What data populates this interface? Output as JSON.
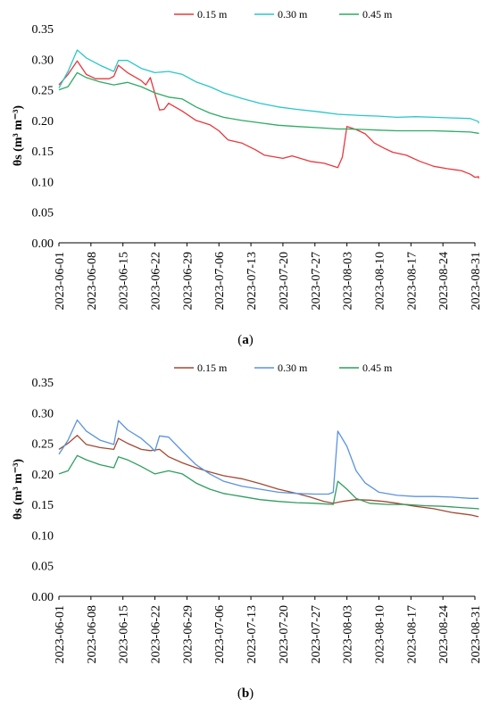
{
  "chart_data": [
    {
      "panel_label": "a",
      "type": "line",
      "ylabel": "θs (m³ m⁻³)",
      "ylim": [
        0,
        0.35
      ],
      "yticks": [
        "0.00",
        "0.05",
        "0.10",
        "0.15",
        "0.20",
        "0.25",
        "0.30",
        "0.35"
      ],
      "xticks": [
        "2023-06-01",
        "2023-06-08",
        "2023-06-15",
        "2023-06-22",
        "2023-06-29",
        "2023-07-06",
        "2023-07-13",
        "2023-07-20",
        "2023-07-27",
        "2023-08-03",
        "2023-08-10",
        "2023-08-17",
        "2023-08-24",
        "2023-08-31"
      ],
      "x_start": "2023-06-01",
      "x_end": "2023-08-31",
      "grid": false,
      "legend_position": "top",
      "series": [
        {
          "name": "0.15 m",
          "color": "#e8383d",
          "points": [
            [
              "2023-06-01",
              0.258
            ],
            [
              "2023-06-03",
              0.275
            ],
            [
              "2023-06-05",
              0.297
            ],
            [
              "2023-06-07",
              0.275
            ],
            [
              "2023-06-09",
              0.268
            ],
            [
              "2023-06-12",
              0.268
            ],
            [
              "2023-06-13",
              0.272
            ],
            [
              "2023-06-14",
              0.29
            ],
            [
              "2023-06-16",
              0.278
            ],
            [
              "2023-06-19",
              0.265
            ],
            [
              "2023-06-20",
              0.258
            ],
            [
              "2023-06-21",
              0.27
            ],
            [
              "2023-06-23",
              0.217
            ],
            [
              "2023-06-24",
              0.218
            ],
            [
              "2023-06-25",
              0.228
            ],
            [
              "2023-06-28",
              0.215
            ],
            [
              "2023-07-01",
              0.2
            ],
            [
              "2023-07-04",
              0.193
            ],
            [
              "2023-07-06",
              0.183
            ],
            [
              "2023-07-08",
              0.168
            ],
            [
              "2023-07-11",
              0.163
            ],
            [
              "2023-07-14",
              0.152
            ],
            [
              "2023-07-16",
              0.143
            ],
            [
              "2023-07-20",
              0.138
            ],
            [
              "2023-07-22",
              0.142
            ],
            [
              "2023-07-26",
              0.133
            ],
            [
              "2023-07-29",
              0.13
            ],
            [
              "2023-08-01",
              0.123
            ],
            [
              "2023-08-02",
              0.14
            ],
            [
              "2023-08-03",
              0.19
            ],
            [
              "2023-08-05",
              0.185
            ],
            [
              "2023-08-07",
              0.178
            ],
            [
              "2023-08-09",
              0.163
            ],
            [
              "2023-08-11",
              0.155
            ],
            [
              "2023-08-13",
              0.148
            ],
            [
              "2023-08-16",
              0.143
            ],
            [
              "2023-08-19",
              0.133
            ],
            [
              "2023-08-22",
              0.125
            ],
            [
              "2023-08-25",
              0.121
            ],
            [
              "2023-08-28",
              0.118
            ],
            [
              "2023-08-30",
              0.112
            ],
            [
              "2023-08-31",
              0.107
            ],
            [
              "2023-09-01",
              0.108
            ],
            [
              "2023-09-03",
              0.105
            ]
          ]
        },
        {
          "name": "0.30 m",
          "color": "#29c7c9",
          "points": [
            [
              "2023-06-01",
              0.253
            ],
            [
              "2023-06-03",
              0.28
            ],
            [
              "2023-06-05",
              0.315
            ],
            [
              "2023-06-07",
              0.302
            ],
            [
              "2023-06-10",
              0.29
            ],
            [
              "2023-06-13",
              0.28
            ],
            [
              "2023-06-14",
              0.298
            ],
            [
              "2023-06-16",
              0.298
            ],
            [
              "2023-06-19",
              0.285
            ],
            [
              "2023-06-22",
              0.278
            ],
            [
              "2023-06-25",
              0.28
            ],
            [
              "2023-06-28",
              0.275
            ],
            [
              "2023-07-01",
              0.263
            ],
            [
              "2023-07-04",
              0.255
            ],
            [
              "2023-07-07",
              0.245
            ],
            [
              "2023-07-11",
              0.236
            ],
            [
              "2023-07-15",
              0.228
            ],
            [
              "2023-07-19",
              0.222
            ],
            [
              "2023-07-23",
              0.218
            ],
            [
              "2023-07-28",
              0.214
            ],
            [
              "2023-08-01",
              0.21
            ],
            [
              "2023-08-06",
              0.208
            ],
            [
              "2023-08-10",
              0.207
            ],
            [
              "2023-08-14",
              0.205
            ],
            [
              "2023-08-18",
              0.206
            ],
            [
              "2023-08-22",
              0.205
            ],
            [
              "2023-08-26",
              0.204
            ],
            [
              "2023-08-30",
              0.203
            ],
            [
              "2023-09-01",
              0.198
            ],
            [
              "2023-09-03",
              0.195
            ]
          ]
        },
        {
          "name": "0.45 m",
          "color": "#2cab64",
          "points": [
            [
              "2023-06-01",
              0.25
            ],
            [
              "2023-06-03",
              0.255
            ],
            [
              "2023-06-05",
              0.278
            ],
            [
              "2023-06-07",
              0.27
            ],
            [
              "2023-06-10",
              0.263
            ],
            [
              "2023-06-13",
              0.258
            ],
            [
              "2023-06-16",
              0.262
            ],
            [
              "2023-06-19",
              0.255
            ],
            [
              "2023-06-22",
              0.245
            ],
            [
              "2023-06-25",
              0.238
            ],
            [
              "2023-06-28",
              0.235
            ],
            [
              "2023-07-01",
              0.222
            ],
            [
              "2023-07-04",
              0.212
            ],
            [
              "2023-07-07",
              0.205
            ],
            [
              "2023-07-11",
              0.2
            ],
            [
              "2023-07-15",
              0.196
            ],
            [
              "2023-07-19",
              0.192
            ],
            [
              "2023-07-23",
              0.19
            ],
            [
              "2023-07-28",
              0.188
            ],
            [
              "2023-08-01",
              0.186
            ],
            [
              "2023-08-03",
              0.186
            ],
            [
              "2023-08-07",
              0.185
            ],
            [
              "2023-08-10",
              0.184
            ],
            [
              "2023-08-14",
              0.183
            ],
            [
              "2023-08-18",
              0.183
            ],
            [
              "2023-08-22",
              0.183
            ],
            [
              "2023-08-26",
              0.182
            ],
            [
              "2023-08-30",
              0.181
            ],
            [
              "2023-09-01",
              0.179
            ],
            [
              "2023-09-03",
              0.178
            ]
          ]
        }
      ]
    },
    {
      "panel_label": "b",
      "type": "line",
      "ylabel": "θs (m³ m⁻³)",
      "ylim": [
        0,
        0.35
      ],
      "yticks": [
        "0.00",
        "0.05",
        "0.10",
        "0.15",
        "0.20",
        "0.25",
        "0.30",
        "0.35"
      ],
      "xticks": [
        "2023-06-01",
        "2023-06-08",
        "2023-06-15",
        "2023-06-22",
        "2023-06-29",
        "2023-07-06",
        "2023-07-13",
        "2023-07-20",
        "2023-07-27",
        "2023-08-03",
        "2023-08-10",
        "2023-08-17",
        "2023-08-24",
        "2023-08-31"
      ],
      "x_start": "2023-06-01",
      "x_end": "2023-08-31",
      "grid": false,
      "legend_position": "top",
      "series": [
        {
          "name": "0.15 m",
          "color": "#a34a33",
          "points": [
            [
              "2023-06-01",
              0.24
            ],
            [
              "2023-06-03",
              0.25
            ],
            [
              "2023-06-05",
              0.263
            ],
            [
              "2023-06-07",
              0.248
            ],
            [
              "2023-06-10",
              0.243
            ],
            [
              "2023-06-13",
              0.24
            ],
            [
              "2023-06-14",
              0.258
            ],
            [
              "2023-06-16",
              0.25
            ],
            [
              "2023-06-19",
              0.24
            ],
            [
              "2023-06-21",
              0.238
            ],
            [
              "2023-06-23",
              0.24
            ],
            [
              "2023-06-25",
              0.228
            ],
            [
              "2023-06-28",
              0.218
            ],
            [
              "2023-07-01",
              0.21
            ],
            [
              "2023-07-04",
              0.203
            ],
            [
              "2023-07-07",
              0.197
            ],
            [
              "2023-07-11",
              0.192
            ],
            [
              "2023-07-15",
              0.184
            ],
            [
              "2023-07-19",
              0.175
            ],
            [
              "2023-07-23",
              0.168
            ],
            [
              "2023-07-26",
              0.162
            ],
            [
              "2023-07-29",
              0.155
            ],
            [
              "2023-07-31",
              0.152
            ],
            [
              "2023-08-02",
              0.155
            ],
            [
              "2023-08-05",
              0.158
            ],
            [
              "2023-08-08",
              0.157
            ],
            [
              "2023-08-11",
              0.155
            ],
            [
              "2023-08-14",
              0.152
            ],
            [
              "2023-08-18",
              0.147
            ],
            [
              "2023-08-22",
              0.143
            ],
            [
              "2023-08-26",
              0.137
            ],
            [
              "2023-08-30",
              0.133
            ],
            [
              "2023-09-03",
              0.13
            ]
          ]
        },
        {
          "name": "0.30 m",
          "color": "#5a94dc",
          "points": [
            [
              "2023-06-01",
              0.232
            ],
            [
              "2023-06-03",
              0.255
            ],
            [
              "2023-06-05",
              0.288
            ],
            [
              "2023-06-07",
              0.27
            ],
            [
              "2023-06-10",
              0.255
            ],
            [
              "2023-06-13",
              0.248
            ],
            [
              "2023-06-14",
              0.287
            ],
            [
              "2023-06-16",
              0.272
            ],
            [
              "2023-06-19",
              0.258
            ],
            [
              "2023-06-21",
              0.245
            ],
            [
              "2023-06-22",
              0.237
            ],
            [
              "2023-06-23",
              0.262
            ],
            [
              "2023-06-25",
              0.26
            ],
            [
              "2023-06-28",
              0.237
            ],
            [
              "2023-07-01",
              0.215
            ],
            [
              "2023-07-04",
              0.2
            ],
            [
              "2023-07-07",
              0.188
            ],
            [
              "2023-07-11",
              0.18
            ],
            [
              "2023-07-15",
              0.175
            ],
            [
              "2023-07-19",
              0.17
            ],
            [
              "2023-07-23",
              0.168
            ],
            [
              "2023-07-27",
              0.167
            ],
            [
              "2023-07-30",
              0.167
            ],
            [
              "2023-07-31",
              0.17
            ],
            [
              "2023-08-01",
              0.27
            ],
            [
              "2023-08-03",
              0.245
            ],
            [
              "2023-08-05",
              0.205
            ],
            [
              "2023-08-07",
              0.185
            ],
            [
              "2023-08-10",
              0.17
            ],
            [
              "2023-08-14",
              0.165
            ],
            [
              "2023-08-18",
              0.163
            ],
            [
              "2023-08-22",
              0.163
            ],
            [
              "2023-08-26",
              0.162
            ],
            [
              "2023-08-30",
              0.16
            ],
            [
              "2023-09-03",
              0.16
            ]
          ]
        },
        {
          "name": "0.45 m",
          "color": "#2f9e5f",
          "points": [
            [
              "2023-06-01",
              0.2
            ],
            [
              "2023-06-03",
              0.205
            ],
            [
              "2023-06-05",
              0.23
            ],
            [
              "2023-06-07",
              0.223
            ],
            [
              "2023-06-10",
              0.215
            ],
            [
              "2023-06-13",
              0.21
            ],
            [
              "2023-06-14",
              0.228
            ],
            [
              "2023-06-16",
              0.223
            ],
            [
              "2023-06-19",
              0.212
            ],
            [
              "2023-06-22",
              0.2
            ],
            [
              "2023-06-25",
              0.205
            ],
            [
              "2023-06-28",
              0.2
            ],
            [
              "2023-07-01",
              0.185
            ],
            [
              "2023-07-04",
              0.175
            ],
            [
              "2023-07-07",
              0.168
            ],
            [
              "2023-07-11",
              0.163
            ],
            [
              "2023-07-15",
              0.158
            ],
            [
              "2023-07-19",
              0.155
            ],
            [
              "2023-07-23",
              0.153
            ],
            [
              "2023-07-27",
              0.152
            ],
            [
              "2023-07-31",
              0.15
            ],
            [
              "2023-08-01",
              0.188
            ],
            [
              "2023-08-03",
              0.175
            ],
            [
              "2023-08-05",
              0.16
            ],
            [
              "2023-08-08",
              0.152
            ],
            [
              "2023-08-12",
              0.15
            ],
            [
              "2023-08-16",
              0.15
            ],
            [
              "2023-08-20",
              0.148
            ],
            [
              "2023-08-24",
              0.147
            ],
            [
              "2023-08-28",
              0.145
            ],
            [
              "2023-09-01",
              0.143
            ],
            [
              "2023-09-03",
              0.142
            ]
          ]
        }
      ]
    }
  ]
}
